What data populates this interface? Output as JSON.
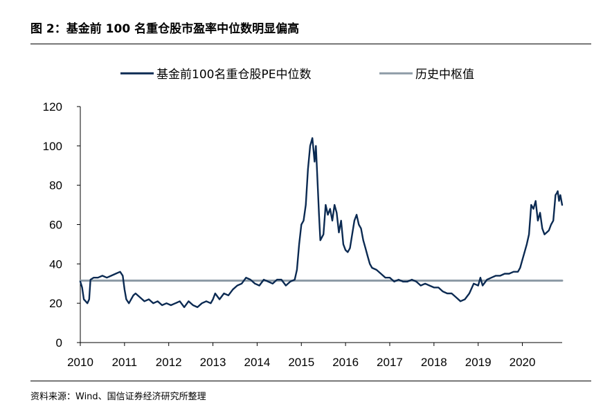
{
  "figure": {
    "title": "图 2：基金前 100 名重仓股市盈率中位数明显偏高",
    "source": "资料来源：Wind、国信证券经济研究所整理"
  },
  "chart_data": {
    "type": "line",
    "ylim": [
      0,
      120
    ],
    "yticks": [
      0,
      20,
      40,
      60,
      80,
      100,
      120
    ],
    "xlim": [
      2010.0,
      2020.9
    ],
    "xticks": [
      "2010",
      "2011",
      "2012",
      "2013",
      "2014",
      "2015",
      "2016",
      "2017",
      "2018",
      "2019",
      "2020"
    ],
    "legend_position": "top",
    "grid": false,
    "series": [
      {
        "name": "基金前100名重仓股PE中位数",
        "color": "#0b2a52",
        "points": [
          [
            2010.0,
            31
          ],
          [
            2010.04,
            28
          ],
          [
            2010.08,
            22
          ],
          [
            2010.12,
            21
          ],
          [
            2010.16,
            20
          ],
          [
            2010.2,
            22
          ],
          [
            2010.23,
            32
          ],
          [
            2010.3,
            33
          ],
          [
            2010.4,
            33
          ],
          [
            2010.5,
            34
          ],
          [
            2010.6,
            33
          ],
          [
            2010.7,
            34
          ],
          [
            2010.8,
            35
          ],
          [
            2010.9,
            36
          ],
          [
            2010.96,
            34
          ],
          [
            2011.0,
            27
          ],
          [
            2011.04,
            22
          ],
          [
            2011.1,
            20
          ],
          [
            2011.2,
            24
          ],
          [
            2011.25,
            25
          ],
          [
            2011.35,
            23
          ],
          [
            2011.45,
            21
          ],
          [
            2011.55,
            22
          ],
          [
            2011.65,
            20
          ],
          [
            2011.75,
            21
          ],
          [
            2011.85,
            19
          ],
          [
            2011.95,
            20
          ],
          [
            2012.05,
            19
          ],
          [
            2012.15,
            20
          ],
          [
            2012.25,
            21
          ],
          [
            2012.35,
            18
          ],
          [
            2012.45,
            21
          ],
          [
            2012.55,
            19
          ],
          [
            2012.65,
            18
          ],
          [
            2012.75,
            20
          ],
          [
            2012.85,
            21
          ],
          [
            2012.95,
            20
          ],
          [
            2013.0,
            22
          ],
          [
            2013.05,
            25
          ],
          [
            2013.15,
            22
          ],
          [
            2013.25,
            25
          ],
          [
            2013.35,
            24
          ],
          [
            2013.45,
            27
          ],
          [
            2013.55,
            29
          ],
          [
            2013.65,
            30
          ],
          [
            2013.75,
            33
          ],
          [
            2013.85,
            32
          ],
          [
            2013.95,
            30
          ],
          [
            2014.05,
            29
          ],
          [
            2014.15,
            32
          ],
          [
            2014.25,
            31
          ],
          [
            2014.35,
            30
          ],
          [
            2014.45,
            32
          ],
          [
            2014.55,
            32
          ],
          [
            2014.65,
            29
          ],
          [
            2014.75,
            31
          ],
          [
            2014.85,
            32
          ],
          [
            2014.9,
            37
          ],
          [
            2014.95,
            50
          ],
          [
            2015.0,
            60
          ],
          [
            2015.05,
            62
          ],
          [
            2015.1,
            70
          ],
          [
            2015.15,
            88
          ],
          [
            2015.2,
            100
          ],
          [
            2015.25,
            104
          ],
          [
            2015.3,
            92
          ],
          [
            2015.33,
            100
          ],
          [
            2015.37,
            80
          ],
          [
            2015.4,
            65
          ],
          [
            2015.43,
            52
          ],
          [
            2015.5,
            55
          ],
          [
            2015.55,
            70
          ],
          [
            2015.6,
            65
          ],
          [
            2015.65,
            68
          ],
          [
            2015.7,
            62
          ],
          [
            2015.75,
            70
          ],
          [
            2015.8,
            66
          ],
          [
            2015.85,
            56
          ],
          [
            2015.9,
            62
          ],
          [
            2015.95,
            50
          ],
          [
            2016.0,
            47
          ],
          [
            2016.05,
            46
          ],
          [
            2016.1,
            48
          ],
          [
            2016.15,
            55
          ],
          [
            2016.2,
            62
          ],
          [
            2016.25,
            65
          ],
          [
            2016.3,
            60
          ],
          [
            2016.35,
            58
          ],
          [
            2016.4,
            52
          ],
          [
            2016.45,
            48
          ],
          [
            2016.5,
            44
          ],
          [
            2016.55,
            40
          ],
          [
            2016.6,
            38
          ],
          [
            2016.7,
            37
          ],
          [
            2016.8,
            35
          ],
          [
            2016.9,
            33
          ],
          [
            2017.0,
            33
          ],
          [
            2017.1,
            31
          ],
          [
            2017.2,
            32
          ],
          [
            2017.3,
            31
          ],
          [
            2017.4,
            31
          ],
          [
            2017.5,
            32
          ],
          [
            2017.6,
            31
          ],
          [
            2017.7,
            29
          ],
          [
            2017.8,
            30
          ],
          [
            2017.9,
            29
          ],
          [
            2018.0,
            28
          ],
          [
            2018.1,
            28
          ],
          [
            2018.2,
            26
          ],
          [
            2018.3,
            25
          ],
          [
            2018.4,
            25
          ],
          [
            2018.5,
            23
          ],
          [
            2018.6,
            21
          ],
          [
            2018.7,
            22
          ],
          [
            2018.8,
            25
          ],
          [
            2018.9,
            30
          ],
          [
            2019.0,
            29
          ],
          [
            2019.05,
            33
          ],
          [
            2019.1,
            29
          ],
          [
            2019.2,
            32
          ],
          [
            2019.3,
            33
          ],
          [
            2019.4,
            34
          ],
          [
            2019.5,
            34
          ],
          [
            2019.6,
            35
          ],
          [
            2019.7,
            35
          ],
          [
            2019.8,
            36
          ],
          [
            2019.9,
            36
          ],
          [
            2019.95,
            38
          ],
          [
            2020.0,
            42
          ],
          [
            2020.05,
            46
          ],
          [
            2020.1,
            50
          ],
          [
            2020.15,
            55
          ],
          [
            2020.2,
            70
          ],
          [
            2020.25,
            68
          ],
          [
            2020.3,
            72
          ],
          [
            2020.35,
            62
          ],
          [
            2020.4,
            66
          ],
          [
            2020.45,
            58
          ],
          [
            2020.5,
            55
          ],
          [
            2020.55,
            56
          ],
          [
            2020.6,
            57
          ],
          [
            2020.65,
            60
          ],
          [
            2020.7,
            62
          ],
          [
            2020.75,
            75
          ],
          [
            2020.78,
            76
          ],
          [
            2020.8,
            77
          ],
          [
            2020.83,
            72
          ],
          [
            2020.86,
            75
          ],
          [
            2020.9,
            70
          ]
        ]
      },
      {
        "name": "历史中枢值",
        "color": "#8d9ba6",
        "points": [
          [
            2010.0,
            31.5
          ],
          [
            2020.9,
            31.5
          ]
        ]
      }
    ]
  }
}
